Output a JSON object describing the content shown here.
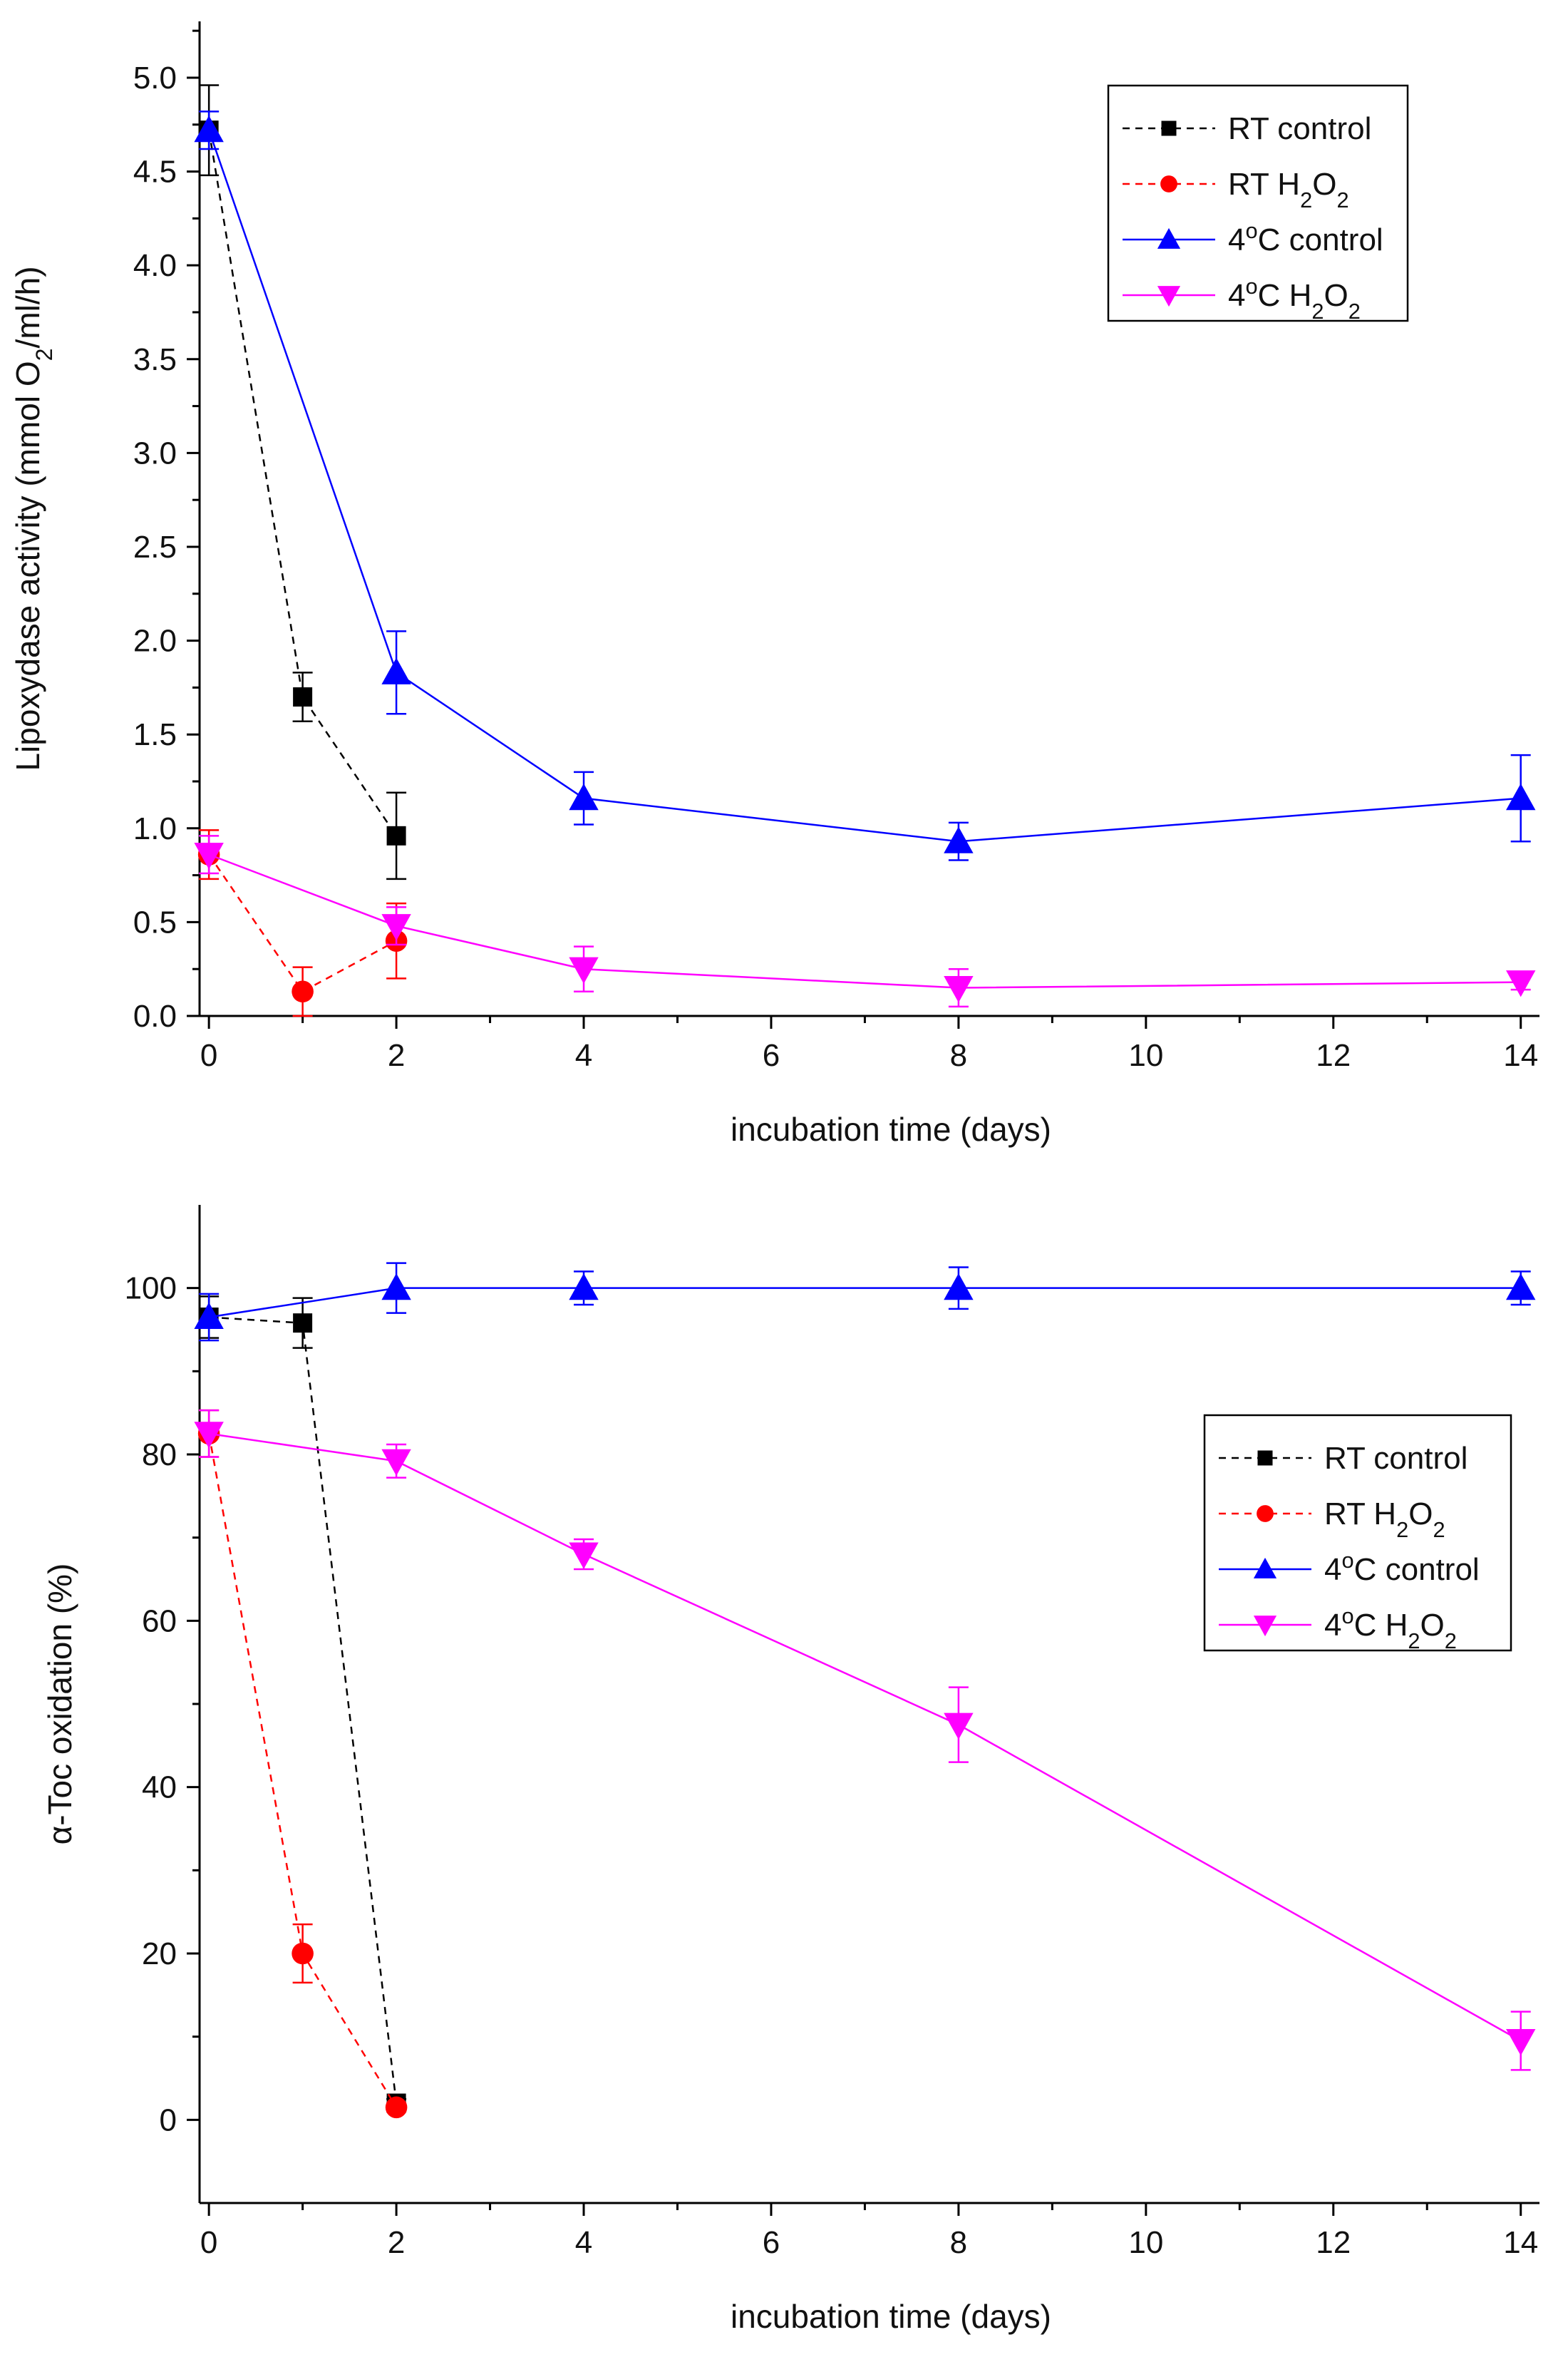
{
  "chart_data": [
    {
      "type": "line",
      "xlabel": "incubation time (days)",
      "ylabel_parts": [
        "Lipoxydase activity (mmol O",
        "2",
        "/ml/h)"
      ],
      "xlim": [
        -0.1,
        14.2
      ],
      "ylim": [
        0,
        5.3
      ],
      "xticks": [
        0,
        2,
        4,
        6,
        8,
        10,
        12,
        14
      ],
      "yticks": [
        0,
        0.5,
        1.0,
        1.5,
        2.0,
        2.5,
        3.0,
        3.5,
        4.0,
        4.5,
        5.0
      ],
      "ytick_labels": [
        "0.0",
        "0.5",
        "1.0",
        "1.5",
        "2.0",
        "2.5",
        "3.0",
        "3.5",
        "4.0",
        "4.5",
        "5.0"
      ],
      "legend_position": "top-right",
      "series": [
        {
          "name": "RT control",
          "legend_parts": [
            "RT control"
          ],
          "color": "#000000",
          "marker": "square",
          "dashed": true,
          "x": [
            0,
            1,
            2
          ],
          "y": [
            4.72,
            1.7,
            0.96
          ],
          "err": [
            0.24,
            0.13,
            0.23
          ]
        },
        {
          "name": "RT H2O2",
          "legend_parts": [
            "RT H",
            "2",
            "O",
            "2"
          ],
          "color": "#ff0000",
          "marker": "circle",
          "dashed": true,
          "x": [
            0,
            1,
            2
          ],
          "y": [
            0.86,
            0.13,
            0.4
          ],
          "err": [
            0.13,
            0.13,
            0.2
          ]
        },
        {
          "name": "4°C control",
          "legend_parts": [
            "4",
            "o",
            "C control"
          ],
          "color": "#0000ff",
          "marker": "triangle-up",
          "dashed": false,
          "x": [
            0,
            2,
            4,
            8,
            14
          ],
          "y": [
            4.72,
            1.83,
            1.16,
            0.93,
            1.16
          ],
          "err": [
            0.1,
            0.22,
            0.14,
            0.1,
            0.23
          ]
        },
        {
          "name": "4°C H2O2",
          "legend_parts": [
            "4",
            "o",
            "C H",
            "2",
            "O",
            "2"
          ],
          "color": "#ff00ff",
          "marker": "triangle-down",
          "dashed": false,
          "x": [
            0,
            2,
            4,
            8,
            14
          ],
          "y": [
            0.86,
            0.48,
            0.25,
            0.15,
            0.18
          ],
          "err": [
            0.1,
            0.1,
            0.12,
            0.1,
            0.04
          ]
        }
      ]
    },
    {
      "type": "line",
      "xlabel": "incubation time (days)",
      "ylabel_parts": [
        "α-Toc oxidation (%)"
      ],
      "xlim": [
        -0.1,
        14.2
      ],
      "ylim": [
        -10,
        110
      ],
      "xticks": [
        0,
        2,
        4,
        6,
        8,
        10,
        12,
        14
      ],
      "yticks": [
        0,
        20,
        40,
        60,
        80,
        100
      ],
      "ytick_labels": [
        "0",
        "20",
        "40",
        "60",
        "80",
        "100"
      ],
      "legend_position": "middle-right",
      "series": [
        {
          "name": "RT control",
          "legend_parts": [
            "RT control"
          ],
          "color": "#000000",
          "marker": "square",
          "dashed": true,
          "x": [
            0,
            1,
            2
          ],
          "y": [
            96.5,
            95.8,
            2
          ],
          "err": [
            2.5,
            3,
            0.5
          ]
        },
        {
          "name": "RT H2O2",
          "legend_parts": [
            "RT H",
            "2",
            "O",
            "2"
          ],
          "color": "#ff0000",
          "marker": "circle",
          "dashed": true,
          "x": [
            0,
            1,
            2
          ],
          "y": [
            82.5,
            20,
            1.5
          ],
          "err": [
            2.8,
            3.5,
            0.5
          ]
        },
        {
          "name": "4°C control",
          "legend_parts": [
            "4",
            "o",
            "C control"
          ],
          "color": "#0000ff",
          "marker": "triangle-up",
          "dashed": false,
          "x": [
            0,
            2,
            4,
            8,
            14
          ],
          "y": [
            96.5,
            100,
            100,
            100,
            100
          ],
          "err": [
            2.8,
            3,
            2,
            2.5,
            2
          ]
        },
        {
          "name": "4°C H2O2",
          "legend_parts": [
            "4",
            "o",
            "C H",
            "2",
            "O",
            "2"
          ],
          "color": "#ff00ff",
          "marker": "triangle-down",
          "dashed": false,
          "x": [
            0,
            2,
            4,
            8,
            14
          ],
          "y": [
            82.5,
            79.2,
            68,
            47.5,
            9.5
          ],
          "err": [
            2.8,
            2,
            1.8,
            4.5,
            3.5
          ]
        }
      ]
    }
  ]
}
